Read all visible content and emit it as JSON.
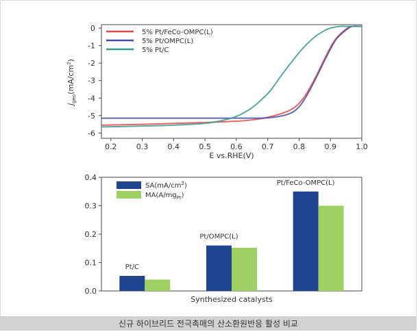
{
  "caption": "신규 하이브리드 전극촉매의 산소환원반응 활성 비교",
  "chart_data": [
    {
      "type": "line",
      "xlabel": "E vs.RHE(V)",
      "ylabel_main": "j",
      "ylabel_sub": "geo",
      "ylabel_units": "(mA/cm",
      "ylabel_sup": "2",
      "ylabel_close": ")",
      "xlim": [
        0.17,
        1.0
      ],
      "ylim": [
        -6.3,
        0.2
      ],
      "xticks": [
        "0.2",
        "0.3",
        "0.4",
        "0.5",
        "0.6",
        "0.7",
        "0.8",
        "0.9",
        "1.0"
      ],
      "xtick_values": [
        0.2,
        0.3,
        0.4,
        0.5,
        0.6,
        0.7,
        0.8,
        0.9,
        1.0
      ],
      "yticks": [
        "0",
        "-1",
        "-2",
        "-3",
        "-4",
        "-5",
        "-6"
      ],
      "ytick_values": [
        0,
        -1,
        -2,
        -3,
        -4,
        -5,
        -6
      ],
      "legend_position": "top-left",
      "series": [
        {
          "name": "5% Pt/FeCo-OMPC(L)",
          "color": "#e8484a",
          "x": [
            0.17,
            0.3,
            0.4,
            0.5,
            0.6,
            0.65,
            0.7,
            0.75,
            0.78,
            0.8,
            0.82,
            0.85,
            0.88,
            0.9,
            0.92,
            0.95,
            0.97,
            1.0
          ],
          "y": [
            -5.55,
            -5.5,
            -5.45,
            -5.4,
            -5.32,
            -5.25,
            -5.1,
            -4.85,
            -4.6,
            -4.3,
            -3.85,
            -2.9,
            -1.8,
            -1.1,
            -0.55,
            -0.05,
            0.1,
            0.1
          ]
        },
        {
          "name": "5% Pt/OMPC(L)",
          "color": "#4a4ea0",
          "x": [
            0.17,
            0.3,
            0.4,
            0.5,
            0.6,
            0.65,
            0.7,
            0.75,
            0.78,
            0.8,
            0.82,
            0.85,
            0.88,
            0.9,
            0.92,
            0.95,
            0.97,
            1.0
          ],
          "y": [
            -5.15,
            -5.15,
            -5.15,
            -5.15,
            -5.15,
            -5.15,
            -5.13,
            -5.0,
            -4.8,
            -4.5,
            -4.0,
            -3.0,
            -1.9,
            -1.2,
            -0.6,
            -0.1,
            0.1,
            0.1
          ]
        },
        {
          "name": "5% Pt/C",
          "color": "#3a9a90",
          "x": [
            0.17,
            0.3,
            0.4,
            0.5,
            0.55,
            0.6,
            0.65,
            0.7,
            0.72,
            0.75,
            0.78,
            0.8,
            0.82,
            0.85,
            0.88,
            0.9,
            0.93,
            0.95,
            1.0
          ],
          "y": [
            -5.65,
            -5.6,
            -5.55,
            -5.45,
            -5.3,
            -5.05,
            -4.55,
            -3.75,
            -3.3,
            -2.55,
            -1.85,
            -1.4,
            -1.0,
            -0.5,
            -0.15,
            0.0,
            0.1,
            0.1,
            0.1
          ]
        }
      ]
    },
    {
      "type": "bar",
      "xlabel": "Synthesized catalysts",
      "categories": [
        "Pt/C",
        "Pt/OMPC(L)",
        "Pt/FeCo-OMPC(L)"
      ],
      "ylim": [
        0.0,
        0.4
      ],
      "yticks": [
        "0.0",
        "0.1",
        "0.2",
        "0.3",
        "0.4"
      ],
      "ytick_values": [
        0.0,
        0.1,
        0.2,
        0.3,
        0.4
      ],
      "legend_position": "top-left",
      "series": [
        {
          "name": "SA(mA/cm",
          "name_sup": "2",
          "name_close": ")",
          "color": "#22448f",
          "values": [
            0.053,
            0.16,
            0.35
          ]
        },
        {
          "name": "MA(A/mg",
          "name_sub": "Pt",
          "name_close": ")",
          "color": "#9fd063",
          "values": [
            0.04,
            0.152,
            0.3
          ]
        }
      ]
    }
  ]
}
